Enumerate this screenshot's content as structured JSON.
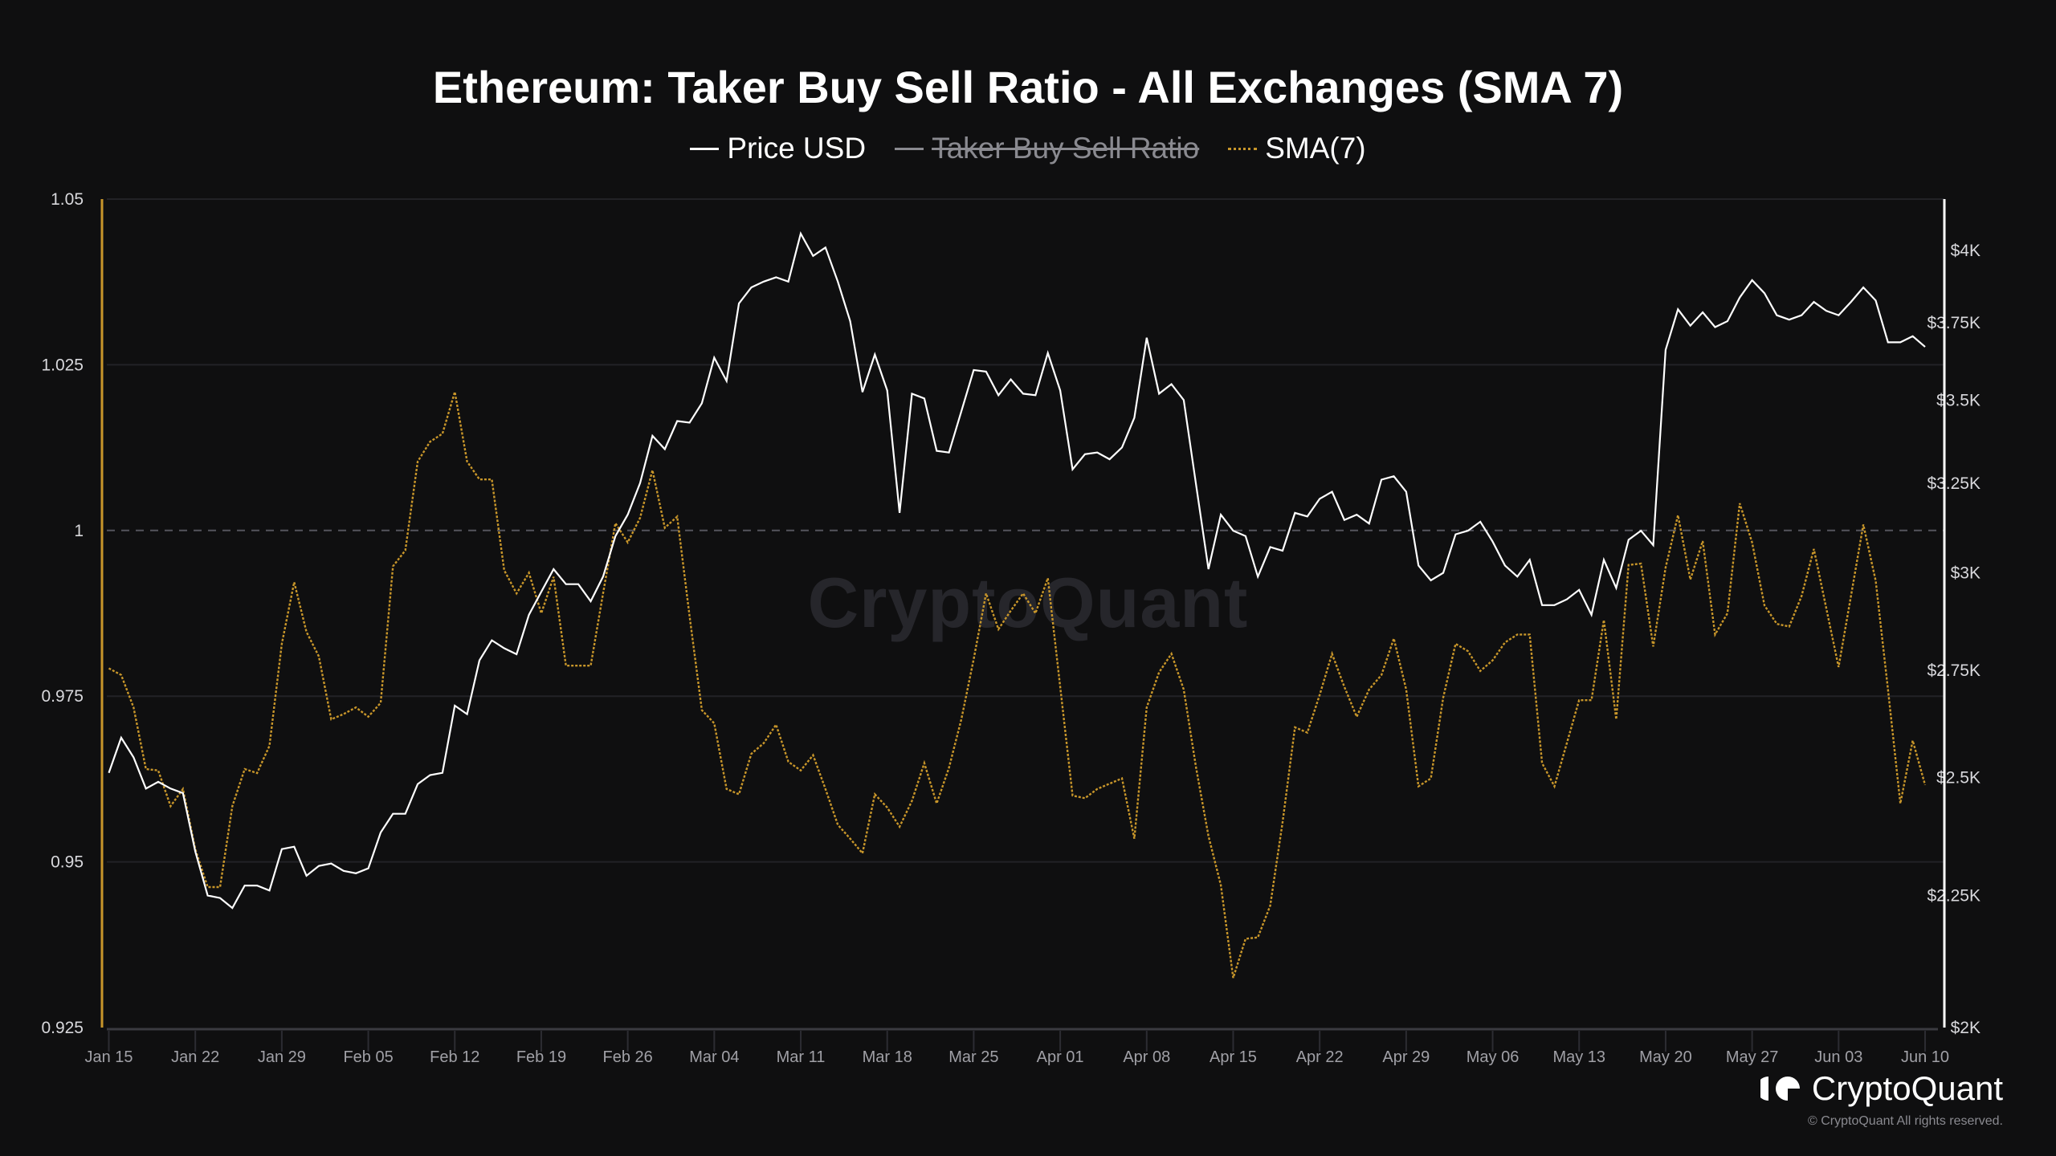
{
  "chart_data": {
    "type": "line",
    "title": "Ethereum: Taker Buy Sell Ratio - All Exchanges (SMA 7)",
    "legend": [
      {
        "name": "Price USD",
        "color": "#ffffff",
        "active": true
      },
      {
        "name": "Taker Buy Sell Ratio",
        "color": "#8a8a90",
        "active": false
      },
      {
        "name": "SMA(7)",
        "color": "#c8962a",
        "active": true
      }
    ],
    "x_start": "2024-01-15",
    "x_tick_labels": [
      "Jan 15",
      "Jan 22",
      "Jan 29",
      "Feb 05",
      "Feb 12",
      "Feb 19",
      "Feb 26",
      "Mar 04",
      "Mar 11",
      "Mar 18",
      "Mar 25",
      "Apr 01",
      "Apr 08",
      "Apr 15",
      "Apr 22",
      "Apr 29",
      "May 06",
      "May 13",
      "May 20",
      "May 27",
      "Jun 03",
      "Jun 10"
    ],
    "left_axis": {
      "ticks": [
        1.05,
        1.025,
        1,
        0.975,
        0.95,
        0.925
      ],
      "tick_labels": [
        "1.05",
        "1.025",
        "1",
        "0.975",
        "0.95",
        "0.925"
      ],
      "ylim": [
        0.925,
        1.05
      ],
      "reference_line": 1,
      "color": "#c8962a"
    },
    "right_axis": {
      "scale": "log",
      "ticks": [
        4000,
        3750,
        3500,
        3250,
        3000,
        2750,
        2500,
        2250,
        2000
      ],
      "tick_labels": [
        "$4K",
        "$3.75K",
        "$3.5K",
        "$3.25K",
        "$3K",
        "$2.75K",
        "$2.5K",
        "$2.25K",
        "$2K"
      ],
      "ylim": [
        2000,
        4250
      ],
      "color": "#ffffff"
    },
    "grid": true,
    "series": [
      {
        "name": "Price USD",
        "axis": "right",
        "values": [
          2510,
          2590,
          2545,
          2475,
          2490,
          2475,
          2465,
          2340,
          2250,
          2245,
          2225,
          2270,
          2270,
          2260,
          2345,
          2350,
          2290,
          2310,
          2315,
          2300,
          2295,
          2305,
          2380,
          2420,
          2420,
          2485,
          2505,
          2510,
          2665,
          2645,
          2775,
          2825,
          2805,
          2790,
          2890,
          2950,
          3010,
          2970,
          2970,
          2925,
          2990,
          3100,
          3160,
          3250,
          3390,
          3350,
          3435,
          3430,
          3490,
          3635,
          3560,
          3815,
          3870,
          3890,
          3905,
          3890,
          4060,
          3980,
          4010,
          3890,
          3755,
          3525,
          3645,
          3530,
          3165,
          3520,
          3505,
          3345,
          3340,
          3465,
          3595,
          3590,
          3515,
          3565,
          3520,
          3515,
          3650,
          3530,
          3290,
          3335,
          3340,
          3320,
          3355,
          3445,
          3700,
          3520,
          3550,
          3500,
          3245,
          3010,
          3160,
          3115,
          3100,
          2990,
          3070,
          3060,
          3165,
          3155,
          3205,
          3225,
          3145,
          3160,
          3135,
          3260,
          3270,
          3225,
          3020,
          2980,
          3000,
          3105,
          3115,
          3140,
          3085,
          3020,
          2990,
          3035,
          2915,
          2915,
          2930,
          2955,
          2890,
          3035,
          2960,
          3090,
          3115,
          3075,
          3660,
          3795,
          3740,
          3785,
          3735,
          3755,
          3835,
          3895,
          3850,
          3775,
          3760,
          3775,
          3820,
          3790,
          3775,
          3820,
          3870,
          3825,
          3685,
          3685,
          3705,
          3670
        ]
      },
      {
        "name": "SMA(7)",
        "axis": "left",
        "values": [
          0.9792,
          0.9782,
          0.9733,
          0.964,
          0.9638,
          0.9584,
          0.961,
          0.9519,
          0.9462,
          0.9462,
          0.9584,
          0.964,
          0.9634,
          0.9675,
          0.9829,
          0.9922,
          0.9847,
          0.981,
          0.9715,
          0.9723,
          0.9733,
          0.9719,
          0.974,
          0.9946,
          0.997,
          1.0104,
          1.0134,
          1.0146,
          1.0209,
          1.0104,
          1.0077,
          1.0077,
          0.994,
          0.9905,
          0.9936,
          0.9875,
          0.993,
          0.9796,
          0.9796,
          0.9796,
          0.9905,
          1.0011,
          0.9982,
          1.0019,
          1.0091,
          1.0004,
          1.0021,
          0.9871,
          0.9729,
          0.9709,
          0.961,
          0.9602,
          0.9663,
          0.9679,
          0.9707,
          0.9651,
          0.9638,
          0.9661,
          0.961,
          0.9556,
          0.9535,
          0.9513,
          0.9602,
          0.9582,
          0.9553,
          0.9592,
          0.9649,
          0.9588,
          0.9642,
          0.9715,
          0.9806,
          0.9905,
          0.9851,
          0.9879,
          0.9905,
          0.9875,
          0.9928,
          0.9764,
          0.96,
          0.9596,
          0.961,
          0.9618,
          0.9626,
          0.9535,
          0.9733,
          0.9786,
          0.9814,
          0.976,
          0.9642,
          0.9539,
          0.9465,
          0.9325,
          0.9384,
          0.9386,
          0.9434,
          0.956,
          0.9703,
          0.9695,
          0.9752,
          0.9814,
          0.9764,
          0.9719,
          0.976,
          0.9782,
          0.9837,
          0.976,
          0.9614,
          0.9626,
          0.9748,
          0.9829,
          0.9818,
          0.9788,
          0.9804,
          0.9831,
          0.9843,
          0.9843,
          0.9649,
          0.9614,
          0.9679,
          0.9744,
          0.9744,
          0.9865,
          0.9715,
          0.9948,
          0.995,
          0.9825,
          0.9944,
          1.0023,
          0.9926,
          0.9984,
          0.9843,
          0.9875,
          1.0041,
          0.9982,
          0.9887,
          0.9859,
          0.9855,
          0.9901,
          0.9972,
          0.9883,
          0.9794,
          0.9901,
          1.0009,
          0.9924,
          0.976,
          0.9588,
          0.9683,
          0.9616
        ]
      }
    ]
  },
  "watermark": "CryptoQuant",
  "brand": {
    "name": "CryptoQuant",
    "copyright": "© CryptoQuant All rights reserved."
  }
}
